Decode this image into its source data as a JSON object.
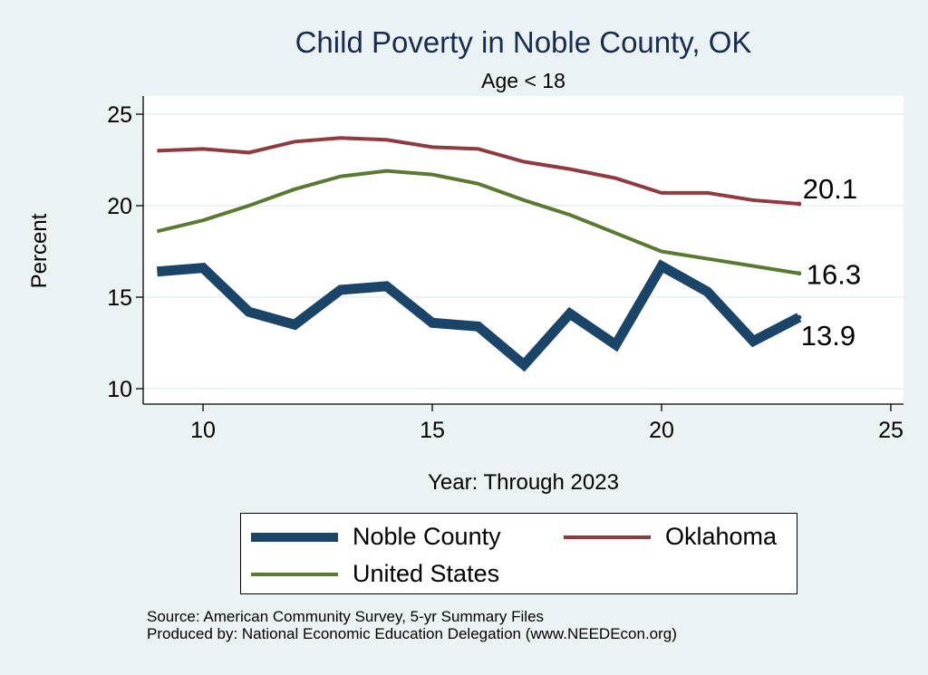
{
  "chart_data": {
    "type": "line",
    "title": "Child Poverty in Noble County, OK",
    "subtitle": "Age < 18",
    "xlabel": "Year: Through 2023",
    "ylabel": "Percent",
    "xlim": [
      9,
      25
    ],
    "ylim": [
      9.6,
      25.8
    ],
    "xticks": [
      10,
      15,
      20,
      25
    ],
    "yticks": [
      10,
      15,
      20,
      25
    ],
    "grid": true,
    "legend_position": "bottom",
    "series": [
      {
        "name": "Noble County",
        "color": "#1a4568",
        "x": [
          9,
          10,
          11,
          12,
          13,
          14,
          15,
          16,
          17,
          18,
          19,
          20,
          21,
          22,
          23
        ],
        "values": [
          16.4,
          16.6,
          14.2,
          13.5,
          15.4,
          15.6,
          13.6,
          13.4,
          11.3,
          14.1,
          12.4,
          16.7,
          15.3,
          12.6,
          13.9
        ],
        "end_label": "13.9"
      },
      {
        "name": "Oklahoma",
        "color": "#903a3f",
        "x": [
          9,
          10,
          11,
          12,
          13,
          14,
          15,
          16,
          17,
          18,
          19,
          20,
          21,
          22,
          23
        ],
        "values": [
          23.0,
          23.1,
          22.9,
          23.5,
          23.7,
          23.6,
          23.2,
          23.1,
          22.4,
          22.0,
          21.5,
          20.7,
          20.7,
          20.3,
          20.1
        ],
        "end_label": "20.1"
      },
      {
        "name": "United States",
        "color": "#5b7a31",
        "x": [
          9,
          10,
          11,
          12,
          13,
          14,
          15,
          16,
          17,
          18,
          19,
          20,
          21,
          22,
          23
        ],
        "values": [
          18.6,
          19.2,
          20.0,
          20.9,
          21.6,
          21.9,
          21.7,
          21.2,
          20.3,
          19.5,
          18.5,
          17.5,
          17.1,
          16.7,
          16.3
        ],
        "end_label": "16.3"
      }
    ]
  },
  "legend": {
    "noble": "Noble County",
    "oklahoma": "Oklahoma",
    "us": "United States"
  },
  "footer": {
    "source": "Source: American Community Survey, 5-yr Summary Files",
    "produced": "Produced by: National Economic Education Delegation (www.NEEDEcon.org)"
  }
}
